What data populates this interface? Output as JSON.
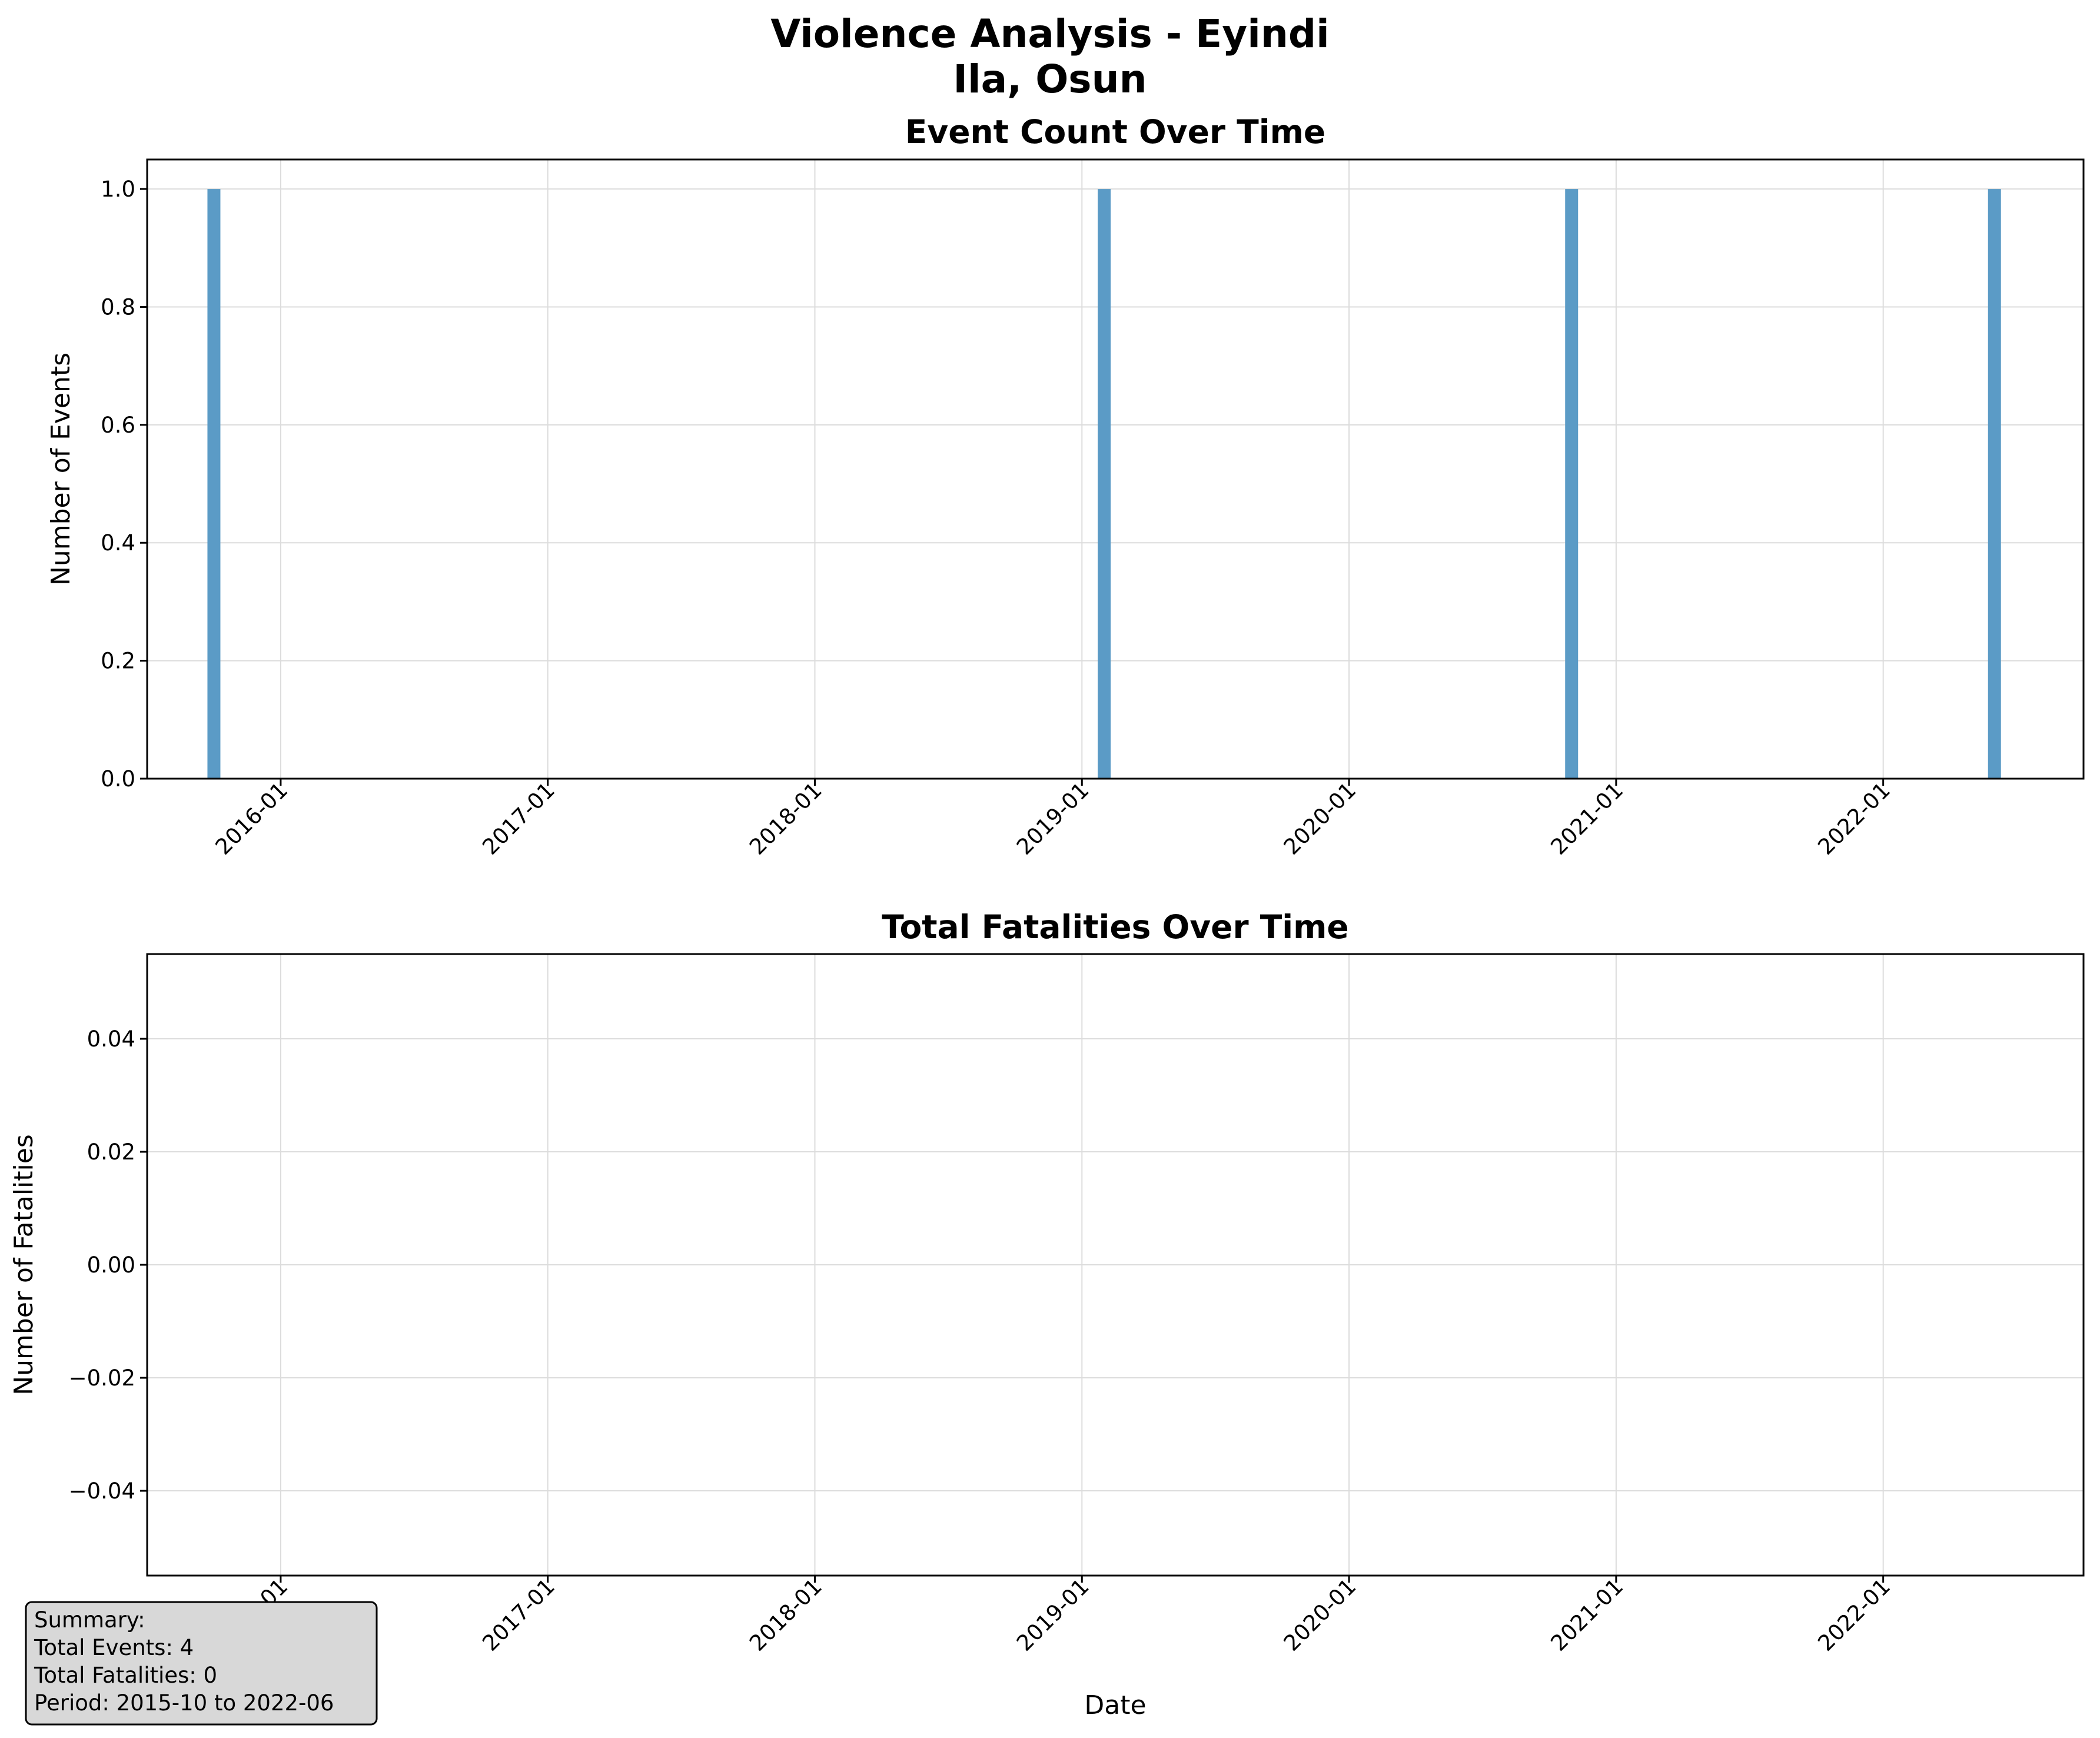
{
  "figure": {
    "title_line1": "Violence Analysis - Eyindi",
    "title_line2": "Ila, Osun"
  },
  "chart_data": [
    {
      "type": "bar",
      "title": "Event Count Over Time",
      "xlabel": "",
      "ylabel": "Number of Events",
      "x_axis": "date",
      "xlim": [
        "2015-07",
        "2022-10"
      ],
      "ylim": [
        0,
        1.05
      ],
      "yticks": [
        0.0,
        0.2,
        0.4,
        0.6,
        0.8,
        1.0
      ],
      "ytick_labels": [
        "0.0",
        "0.2",
        "0.4",
        "0.6",
        "0.8",
        "1.0"
      ],
      "xticks": [
        "2016-01",
        "2017-01",
        "2018-01",
        "2019-01",
        "2020-01",
        "2021-01",
        "2022-01"
      ],
      "grid": true,
      "bar_color": "#5b9bc6",
      "series": [
        {
          "dates": [
            "2015-10",
            "2019-02",
            "2020-11",
            "2022-06"
          ],
          "values": [
            1,
            1,
            1,
            1
          ]
        }
      ]
    },
    {
      "type": "bar",
      "title": "Total Fatalities Over Time",
      "xlabel": "Date",
      "ylabel": "Number of Fatalities",
      "x_axis": "date",
      "xlim": [
        "2015-07",
        "2022-10"
      ],
      "ylim": [
        -0.055,
        0.055
      ],
      "yticks": [
        -0.04,
        -0.02,
        0.0,
        0.02,
        0.04
      ],
      "ytick_labels": [
        "−0.04",
        "−0.02",
        "0.00",
        "0.02",
        "0.04"
      ],
      "xticks": [
        "2016-01",
        "2017-01",
        "2018-01",
        "2019-01",
        "2020-01",
        "2021-01",
        "2022-01"
      ],
      "grid": true,
      "bar_color": "#5b9bc6",
      "series": [
        {
          "dates": [
            "2015-10",
            "2019-02",
            "2020-11",
            "2022-06"
          ],
          "values": [
            0,
            0,
            0,
            0
          ]
        }
      ]
    }
  ],
  "summary": {
    "heading": "Summary:",
    "total_events": "Total Events: 4",
    "total_fatalities": "Total Fatalities: 0",
    "period": "Period: 2015-10 to 2022-06"
  }
}
